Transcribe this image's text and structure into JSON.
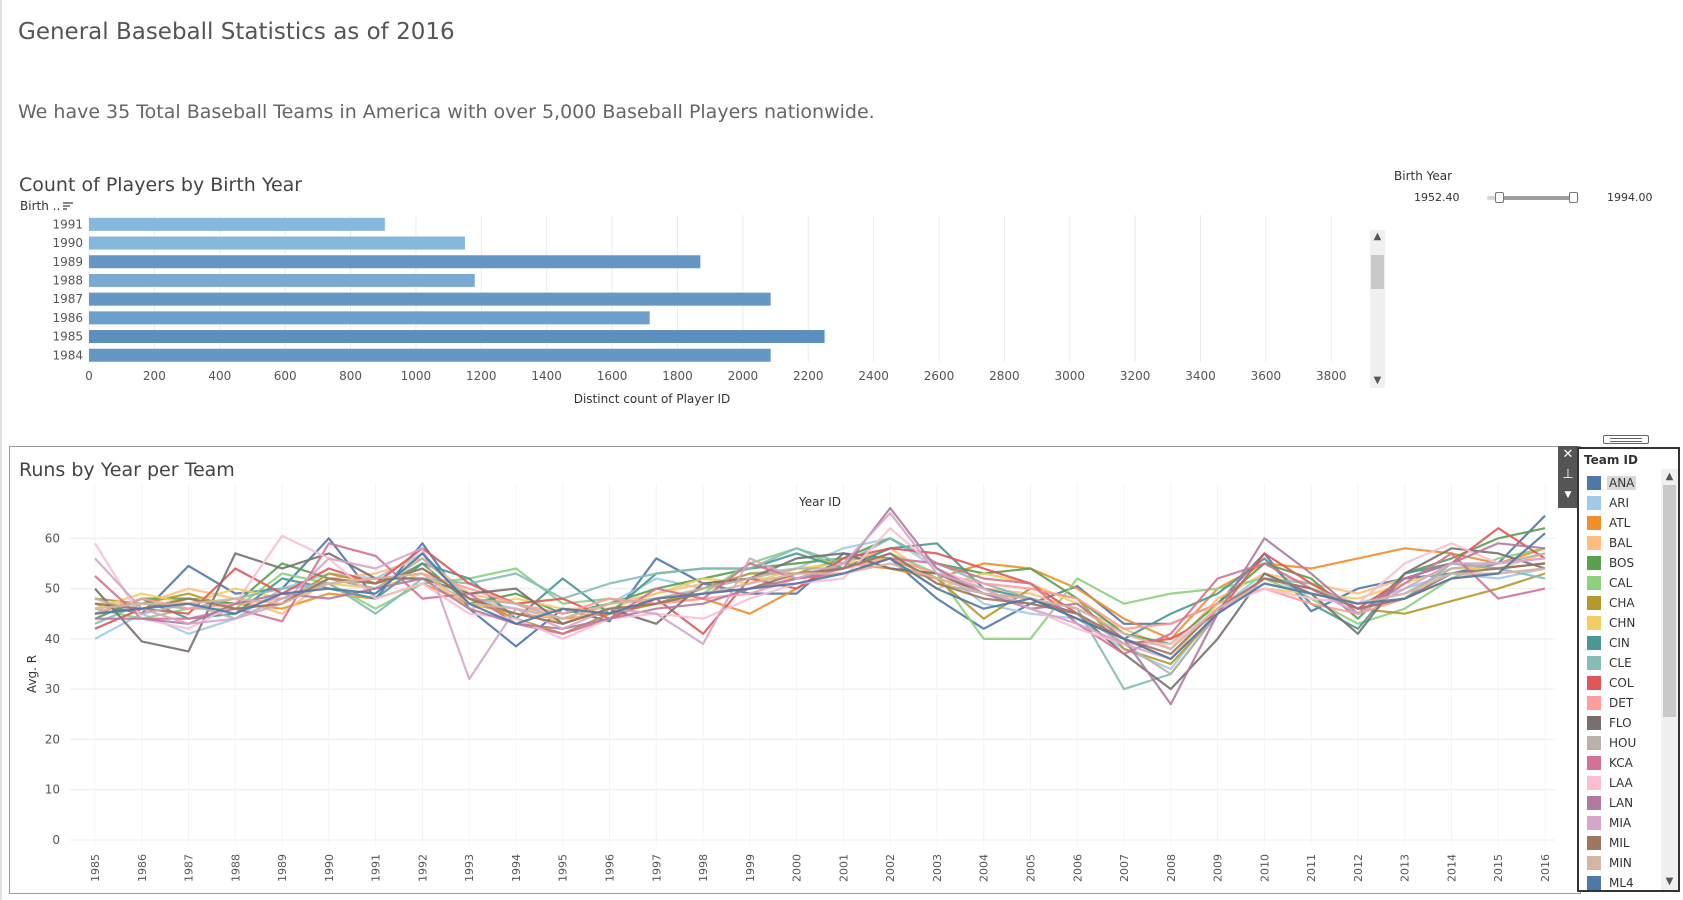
{
  "page": {
    "title": "General Baseball Statistics as of 2016",
    "subtitle": "We have 35 Total Baseball Teams in America with over 5,000 Baseball Players nationwide."
  },
  "filter": {
    "title": "Birth Year",
    "min_label": "1952.40",
    "max_label": "1994.00"
  },
  "legend": {
    "title": "Team ID",
    "items": [
      {
        "label": "ANA",
        "color": "#4e79a7"
      },
      {
        "label": "ARI",
        "color": "#a0cbe8"
      },
      {
        "label": "ATL",
        "color": "#f28e2b"
      },
      {
        "label": "BAL",
        "color": "#ffbe7d"
      },
      {
        "label": "BOS",
        "color": "#59a14f"
      },
      {
        "label": "CAL",
        "color": "#8cd17d"
      },
      {
        "label": "CHA",
        "color": "#b6992d"
      },
      {
        "label": "CHN",
        "color": "#f1ce63"
      },
      {
        "label": "CIN",
        "color": "#499894"
      },
      {
        "label": "CLE",
        "color": "#86bcb6"
      },
      {
        "label": "COL",
        "color": "#e15759"
      },
      {
        "label": "DET",
        "color": "#ff9d9a"
      },
      {
        "label": "FLO",
        "color": "#79706e"
      },
      {
        "label": "HOU",
        "color": "#bab0ac"
      },
      {
        "label": "KCA",
        "color": "#d37295"
      },
      {
        "label": "LAA",
        "color": "#fabfd2"
      },
      {
        "label": "LAN",
        "color": "#b07aa1"
      },
      {
        "label": "MIA",
        "color": "#d4a6c8"
      },
      {
        "label": "MIL",
        "color": "#9d7660"
      },
      {
        "label": "MIN",
        "color": "#d7b5a6"
      },
      {
        "label": "ML4",
        "color": "#4e79a7"
      }
    ]
  },
  "chart_data": [
    {
      "type": "bar",
      "title": "Count of Players by Birth Year",
      "ylabel": "Birth ..",
      "xlabel": "Distinct count of Player ID",
      "orientation": "horizontal",
      "categories": [
        "1991",
        "1990",
        "1989",
        "1988",
        "1987",
        "1986",
        "1985",
        "1984"
      ],
      "values": [
        905,
        1150,
        1870,
        1180,
        2085,
        1715,
        2250,
        2085
      ],
      "xlim": [
        0,
        3900
      ],
      "xticks": [
        0,
        200,
        400,
        600,
        800,
        1000,
        1200,
        1400,
        1600,
        1800,
        2000,
        2200,
        2400,
        2600,
        2800,
        3000,
        3200,
        3400,
        3600,
        3800
      ],
      "color": "#4e79a7",
      "grid": true
    },
    {
      "type": "line",
      "title": "Runs by Year per Team",
      "xlabel": "Year ID",
      "ylabel": "Avg. R",
      "x": [
        "1985",
        "1986",
        "1987",
        "1988",
        "1989",
        "1990",
        "1991",
        "1992",
        "1993",
        "1994",
        "1995",
        "1996",
        "1997",
        "1998",
        "1999",
        "2000",
        "2001",
        "2002",
        "2003",
        "2004",
        "2005",
        "2006",
        "2007",
        "2008",
        "2009",
        "2010",
        "2011",
        "2012",
        "2013",
        "2014",
        "2015",
        "2016"
      ],
      "ylim": [
        0,
        70
      ],
      "yticks": [
        0,
        10,
        20,
        30,
        40,
        50,
        60
      ],
      "grid": true,
      "series": [
        {
          "name": "ANA",
          "values": [
            47,
            45,
            54.5,
            49,
            50,
            60,
            48,
            59,
            46,
            38.5,
            46,
            43.5,
            56,
            51,
            49,
            49,
            57,
            56,
            48,
            42,
            47,
            50.5,
            43,
            43,
            47,
            57,
            45.5,
            50,
            52,
            53,
            55,
            64.5
          ]
        },
        {
          "name": "ARI",
          "values": [
            40,
            45,
            41,
            44,
            50,
            53,
            52,
            57,
            48,
            46,
            44,
            47,
            52,
            50,
            53,
            54,
            58,
            60,
            54,
            47,
            45,
            44,
            38,
            34,
            46,
            53,
            48,
            47,
            50,
            53,
            52,
            54
          ]
        },
        {
          "name": "ATL",
          "values": [
            45,
            46,
            48,
            47,
            46,
            49,
            48,
            51,
            47,
            45,
            44,
            45,
            47,
            48,
            45,
            50,
            55,
            54,
            52,
            55,
            54,
            50,
            44,
            40,
            50,
            55,
            54,
            56,
            58,
            57,
            55,
            58
          ]
        },
        {
          "name": "BAL",
          "values": [
            47,
            47,
            50,
            48,
            45,
            52,
            53,
            56,
            49,
            47,
            43,
            47,
            49,
            51,
            52,
            52,
            55,
            58,
            52,
            50,
            49,
            46,
            42,
            38,
            48,
            53,
            51,
            49,
            52,
            55,
            54,
            57
          ]
        },
        {
          "name": "BOS",
          "values": [
            44,
            48,
            48,
            47,
            55,
            52,
            50,
            55,
            47,
            49,
            45,
            47,
            50,
            52,
            54,
            55,
            56,
            60,
            55,
            53,
            54,
            48,
            41,
            39,
            47,
            55,
            52,
            44,
            53,
            56,
            60,
            62
          ]
        },
        {
          "name": "CAL",
          "values": [
            46,
            44,
            46,
            46,
            53,
            51,
            46,
            51,
            52,
            54,
            47,
            48,
            47,
            49,
            55,
            58,
            54,
            57,
            53,
            40,
            40,
            52,
            47,
            49,
            50,
            52,
            48,
            43,
            46,
            52,
            56,
            58
          ]
        },
        {
          "name": "CHA",
          "values": [
            48,
            47,
            49,
            46,
            47,
            53,
            51,
            54,
            48,
            44,
            41,
            45,
            47,
            50,
            53,
            53,
            56,
            56,
            52,
            44,
            50,
            48,
            38,
            35,
            45,
            52,
            50,
            46,
            45,
            47.5,
            50,
            53
          ]
        },
        {
          "name": "CHN",
          "values": [
            46,
            49,
            47,
            50,
            48,
            51,
            50,
            53,
            46,
            48,
            46,
            46,
            49,
            52,
            51,
            54,
            55,
            56,
            50,
            53,
            51,
            47,
            40,
            36,
            47,
            50,
            49,
            48,
            51,
            54,
            54,
            55
          ]
        },
        {
          "name": "CIN",
          "values": [
            45,
            48,
            44,
            45,
            52,
            50,
            48,
            55,
            52,
            44,
            52,
            45,
            53,
            54,
            54,
            57,
            54,
            58,
            59,
            50,
            48,
            44,
            40,
            45,
            49,
            56,
            47,
            42,
            53,
            55,
            54,
            55
          ]
        },
        {
          "name": "CLE",
          "values": [
            43,
            47,
            46,
            48,
            50,
            51,
            45,
            52,
            51,
            53,
            48,
            51,
            53,
            54,
            54,
            58,
            55,
            60,
            55,
            51,
            48,
            46,
            30,
            33,
            45,
            52,
            51,
            46,
            48,
            55,
            54,
            52
          ]
        },
        {
          "name": "COL",
          "values": [
            42,
            46,
            45,
            54,
            49,
            54,
            51,
            58,
            51,
            47,
            48,
            44,
            48,
            41,
            52,
            50,
            56,
            58,
            57,
            54,
            51,
            45,
            39,
            40,
            45,
            57,
            51,
            46,
            52,
            55,
            62,
            56
          ]
        },
        {
          "name": "DET",
          "values": [
            45,
            48,
            46,
            47,
            48,
            51,
            52,
            53,
            50,
            47,
            45,
            48,
            47,
            48,
            49,
            52,
            54,
            56,
            53,
            51,
            50,
            48,
            42,
            43,
            47,
            50,
            47,
            45,
            48,
            52,
            53,
            54
          ]
        },
        {
          "name": "FLO",
          "values": [
            50,
            39.5,
            37.5,
            57,
            54,
            57,
            52,
            52,
            49,
            50,
            43,
            46,
            43,
            51,
            52,
            56,
            57,
            54,
            53,
            49,
            48,
            45,
            37,
            30,
            40,
            53,
            49,
            41,
            53,
            58,
            57,
            54
          ]
        },
        {
          "name": "HOU",
          "values": [
            48,
            45,
            47,
            44,
            48,
            52,
            50,
            56,
            48,
            47,
            44,
            47,
            48,
            50,
            52,
            54,
            54,
            57,
            51,
            49,
            47,
            45,
            39,
            33,
            45,
            52,
            50,
            47,
            49,
            54,
            55,
            57
          ]
        },
        {
          "name": "KCA",
          "values": [
            52.5,
            44,
            44,
            46,
            43.5,
            59,
            56.5,
            48,
            49,
            43,
            41,
            44,
            50,
            48,
            55,
            52,
            53,
            56,
            55,
            52,
            51,
            43,
            37,
            41,
            52,
            55,
            50,
            45,
            51,
            57,
            48,
            50
          ]
        },
        {
          "name": "LAA",
          "values": [
            59,
            44,
            42,
            47,
            60.5,
            56,
            48,
            51,
            45,
            44,
            40,
            44,
            45,
            44,
            48,
            51,
            52,
            62,
            54,
            50,
            46,
            42,
            39,
            39,
            46,
            50,
            48,
            47,
            55,
            59,
            55,
            56
          ]
        },
        {
          "name": "LAN",
          "values": [
            44,
            44,
            43,
            47,
            49,
            48,
            50,
            52,
            46,
            43,
            42,
            44,
            46,
            47,
            50,
            52,
            54,
            66,
            54,
            49,
            46,
            47,
            40,
            27,
            45,
            60,
            53,
            45,
            52,
            55,
            59,
            58
          ]
        },
        {
          "name": "MIA",
          "values": [
            56,
            46,
            43,
            44,
            47,
            56,
            54,
            58,
            32,
            46,
            42,
            46,
            45,
            39,
            56,
            52,
            55,
            65,
            53,
            50,
            46,
            43,
            39,
            36,
            45,
            52,
            50,
            45,
            50,
            55,
            55,
            56
          ]
        },
        {
          "name": "MIL",
          "values": [
            47,
            46,
            48,
            46,
            47,
            52,
            51,
            54,
            48,
            45,
            43,
            46,
            47,
            49,
            50,
            53,
            54,
            57,
            51,
            48,
            47,
            45,
            40,
            37,
            46,
            52,
            50,
            46,
            48,
            53,
            54,
            55
          ]
        },
        {
          "name": "MIN",
          "values": [
            46,
            47,
            47,
            48,
            47,
            51,
            52,
            53,
            47,
            46,
            44,
            47,
            48,
            49,
            51,
            53,
            53,
            55,
            52,
            49,
            48,
            46,
            41,
            38,
            46,
            51,
            49,
            47,
            49,
            53,
            53,
            54
          ]
        },
        {
          "name": "ML4",
          "values": [
            45,
            46,
            47,
            45,
            49,
            50,
            49,
            57,
            47,
            43,
            46,
            45,
            48,
            49,
            50,
            51,
            53,
            56,
            50,
            46,
            48,
            44,
            40,
            36,
            45,
            51,
            49,
            47,
            48,
            52,
            53,
            61
          ]
        }
      ]
    }
  ]
}
